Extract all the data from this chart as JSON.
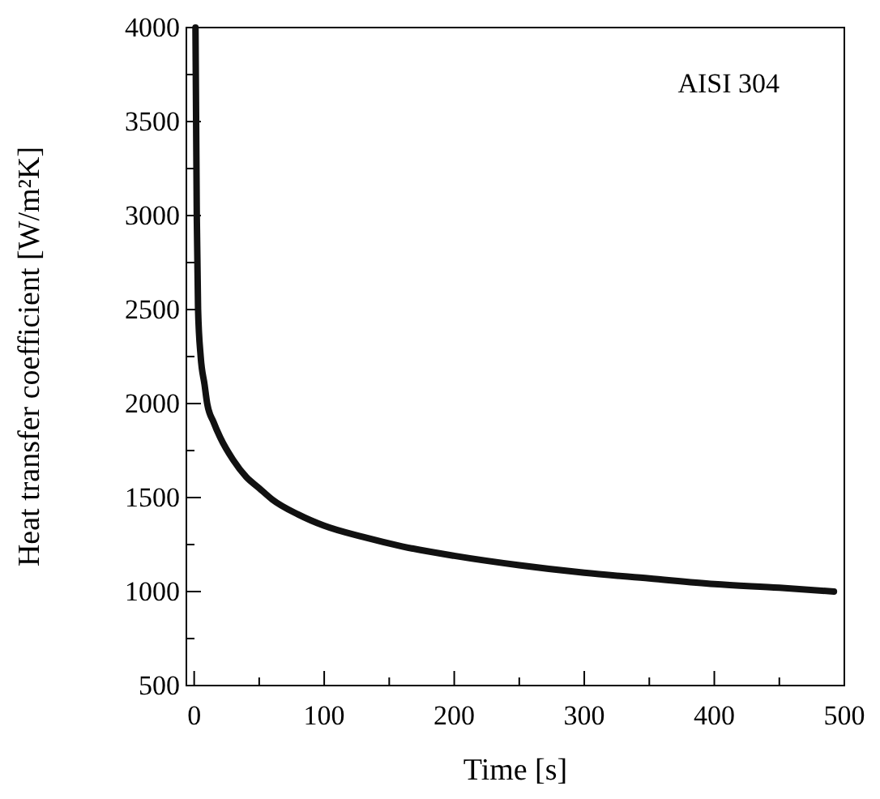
{
  "chart_data": {
    "type": "line",
    "xlabel": "Time [s]",
    "ylabel": "Heat transfer coefficient [W/m²K]",
    "annotations": [
      "AISI 304"
    ],
    "xlim": [
      -6,
      500
    ],
    "ylim": [
      500,
      4000
    ],
    "xticks": [
      0,
      {
        "value": 50,
        "label": null
      },
      100,
      {
        "value": 150,
        "label": null
      },
      200,
      {
        "value": 250,
        "label": null
      },
      300,
      {
        "value": 350,
        "label": null
      },
      400,
      {
        "value": 450,
        "label": null
      },
      500
    ],
    "yticks": [
      500,
      {
        "value": 750,
        "label": null
      },
      1000,
      {
        "value": 1250,
        "label": null
      },
      1500,
      {
        "value": 1750,
        "label": null
      },
      2000,
      {
        "value": 2250,
        "label": null
      },
      2500,
      {
        "value": 2750,
        "label": null
      },
      3000,
      {
        "value": 3250,
        "label": null
      },
      3500,
      {
        "value": 3750,
        "label": null
      },
      4000
    ],
    "marker": "none",
    "line_style": "solid",
    "series": [
      {
        "color": "#111111",
        "x": [
          1,
          2,
          3,
          5,
          8,
          10,
          15,
          20,
          30,
          40,
          50,
          60,
          80,
          100,
          130,
          160,
          200,
          250,
          300,
          350,
          400,
          450,
          492
        ],
        "values": [
          4000,
          3000,
          2500,
          2250,
          2100,
          2000,
          1900,
          1820,
          1700,
          1610,
          1550,
          1490,
          1410,
          1350,
          1290,
          1240,
          1190,
          1140,
          1100,
          1070,
          1040,
          1020,
          1000
        ]
      }
    ]
  }
}
